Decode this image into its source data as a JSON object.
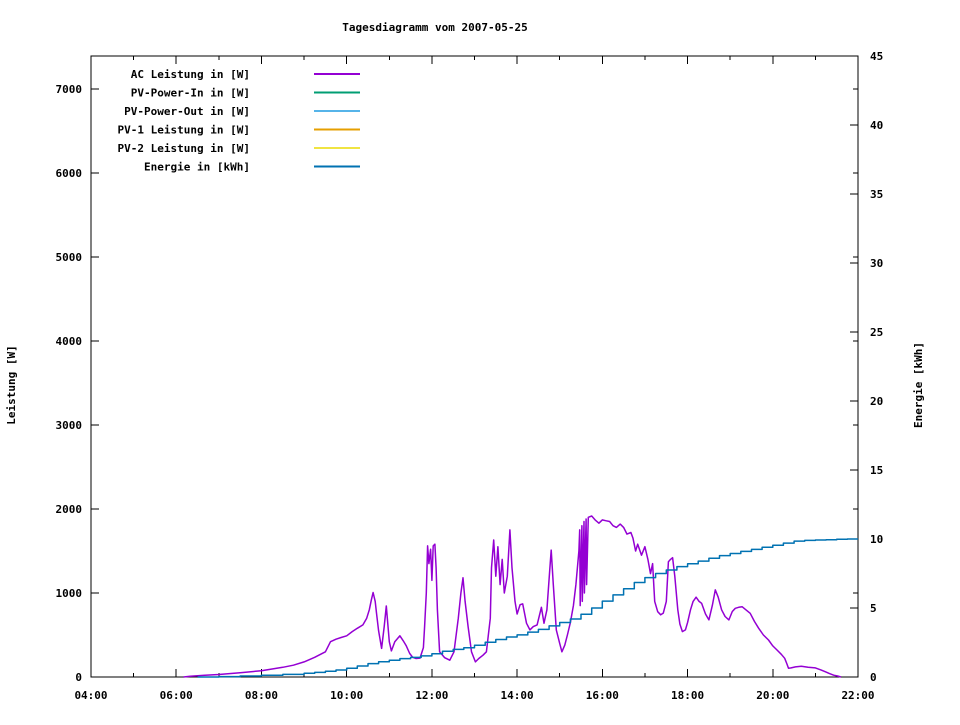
{
  "window": {
    "title": "Tagesdiagramm vom 2007-05-25"
  },
  "chart_data": {
    "type": "line",
    "title": "Tagesdiagramm vom 2007-05-25",
    "x_axis": {
      "range_hours": [
        4,
        22
      ],
      "major_tick_hours": [
        4,
        6,
        8,
        10,
        12,
        14,
        16,
        18,
        20,
        22
      ],
      "major_tick_labels": [
        "04:00",
        "06:00",
        "08:00",
        "10:00",
        "12:00",
        "14:00",
        "16:00",
        "18:00",
        "20:00",
        "22:00"
      ],
      "minor_tick_hours": [
        5,
        7,
        9,
        11,
        13,
        15,
        17,
        19,
        21
      ]
    },
    "y_left": {
      "label": "Leistung [W]",
      "max": 7390,
      "tick_values": [
        0,
        1000,
        2000,
        3000,
        4000,
        5000,
        6000,
        7000
      ]
    },
    "y_right": {
      "label": "Energie [kWh]",
      "max": 45,
      "tick_values": [
        0,
        5,
        10,
        15,
        20,
        25,
        30,
        35,
        40,
        45
      ]
    },
    "legend": [
      {
        "label": "AC Leistung in [W]",
        "color": "#9400d3"
      },
      {
        "label": "PV-Power-In in [W]",
        "color": "#009e73"
      },
      {
        "label": "PV-Power-Out in [W]",
        "color": "#56b4e9"
      },
      {
        "label": "PV-1 Leistung in [W]",
        "color": "#e69f00"
      },
      {
        "label": "PV-2 Leistung in [W]",
        "color": "#f0e442"
      },
      {
        "label": "Energie in [kWh]",
        "color": "#0072b2"
      }
    ],
    "series": [
      {
        "name": "AC Leistung in [W]",
        "color": "#9400d3",
        "axis": "left",
        "style": "line",
        "points": [
          [
            6.17,
            0
          ],
          [
            6.33,
            8
          ],
          [
            6.67,
            20
          ],
          [
            7.0,
            30
          ],
          [
            7.5,
            50
          ],
          [
            8.0,
            75
          ],
          [
            8.25,
            95
          ],
          [
            8.5,
            115
          ],
          [
            8.75,
            140
          ],
          [
            9.0,
            180
          ],
          [
            9.25,
            235
          ],
          [
            9.5,
            300
          ],
          [
            9.62,
            420
          ],
          [
            9.75,
            450
          ],
          [
            9.87,
            470
          ],
          [
            10.0,
            490
          ],
          [
            10.13,
            540
          ],
          [
            10.25,
            580
          ],
          [
            10.38,
            620
          ],
          [
            10.47,
            700
          ],
          [
            10.53,
            800
          ],
          [
            10.58,
            920
          ],
          [
            10.62,
            1005
          ],
          [
            10.67,
            900
          ],
          [
            10.7,
            760
          ],
          [
            10.75,
            550
          ],
          [
            10.82,
            340
          ],
          [
            10.88,
            600
          ],
          [
            10.93,
            845
          ],
          [
            11.0,
            420
          ],
          [
            11.05,
            310
          ],
          [
            11.13,
            420
          ],
          [
            11.25,
            490
          ],
          [
            11.33,
            430
          ],
          [
            11.4,
            370
          ],
          [
            11.48,
            280
          ],
          [
            11.55,
            235
          ],
          [
            11.63,
            220
          ],
          [
            11.72,
            225
          ],
          [
            11.8,
            350
          ],
          [
            11.83,
            600
          ],
          [
            11.87,
            1000
          ],
          [
            11.9,
            1560
          ],
          [
            11.93,
            1350
          ],
          [
            11.97,
            1520
          ],
          [
            12.0,
            1150
          ],
          [
            12.03,
            1560
          ],
          [
            12.07,
            1580
          ],
          [
            12.1,
            1300
          ],
          [
            12.13,
            800
          ],
          [
            12.18,
            300
          ],
          [
            12.3,
            230
          ],
          [
            12.42,
            200
          ],
          [
            12.52,
            300
          ],
          [
            12.62,
            700
          ],
          [
            12.68,
            1000
          ],
          [
            12.73,
            1180
          ],
          [
            12.78,
            900
          ],
          [
            12.85,
            600
          ],
          [
            12.93,
            300
          ],
          [
            13.02,
            180
          ],
          [
            13.1,
            220
          ],
          [
            13.2,
            260
          ],
          [
            13.28,
            300
          ],
          [
            13.37,
            700
          ],
          [
            13.4,
            1300
          ],
          [
            13.45,
            1630
          ],
          [
            13.5,
            1200
          ],
          [
            13.55,
            1550
          ],
          [
            13.6,
            1100
          ],
          [
            13.65,
            1400
          ],
          [
            13.7,
            1000
          ],
          [
            13.77,
            1200
          ],
          [
            13.83,
            1750
          ],
          [
            13.88,
            1300
          ],
          [
            13.95,
            900
          ],
          [
            14.0,
            750
          ],
          [
            14.07,
            860
          ],
          [
            14.13,
            870
          ],
          [
            14.22,
            640
          ],
          [
            14.3,
            560
          ],
          [
            14.38,
            600
          ],
          [
            14.47,
            620
          ],
          [
            14.57,
            830
          ],
          [
            14.63,
            640
          ],
          [
            14.7,
            800
          ],
          [
            14.77,
            1300
          ],
          [
            14.8,
            1510
          ],
          [
            14.85,
            1100
          ],
          [
            14.92,
            560
          ],
          [
            15.0,
            400
          ],
          [
            15.05,
            300
          ],
          [
            15.12,
            380
          ],
          [
            15.18,
            500
          ],
          [
            15.25,
            650
          ],
          [
            15.32,
            850
          ],
          [
            15.38,
            1100
          ],
          [
            15.45,
            1500
          ],
          [
            15.47,
            1750
          ],
          [
            15.48,
            850
          ],
          [
            15.52,
            1800
          ],
          [
            15.53,
            900
          ],
          [
            15.57,
            1850
          ],
          [
            15.58,
            1000
          ],
          [
            15.62,
            1880
          ],
          [
            15.63,
            1100
          ],
          [
            15.67,
            1900
          ],
          [
            15.75,
            1916
          ],
          [
            15.83,
            1870
          ],
          [
            15.92,
            1830
          ],
          [
            16.0,
            1870
          ],
          [
            16.08,
            1860
          ],
          [
            16.17,
            1850
          ],
          [
            16.25,
            1800
          ],
          [
            16.33,
            1780
          ],
          [
            16.42,
            1820
          ],
          [
            16.5,
            1780
          ],
          [
            16.58,
            1700
          ],
          [
            16.67,
            1720
          ],
          [
            16.72,
            1650
          ],
          [
            16.78,
            1500
          ],
          [
            16.83,
            1580
          ],
          [
            16.92,
            1450
          ],
          [
            17.0,
            1550
          ],
          [
            17.07,
            1400
          ],
          [
            17.13,
            1230
          ],
          [
            17.18,
            1350
          ],
          [
            17.23,
            900
          ],
          [
            17.3,
            777
          ],
          [
            17.37,
            740
          ],
          [
            17.43,
            760
          ],
          [
            17.5,
            900
          ],
          [
            17.55,
            1372
          ],
          [
            17.6,
            1400
          ],
          [
            17.65,
            1420
          ],
          [
            17.7,
            1200
          ],
          [
            17.77,
            800
          ],
          [
            17.82,
            630
          ],
          [
            17.88,
            540
          ],
          [
            17.95,
            560
          ],
          [
            18.0,
            650
          ],
          [
            18.07,
            800
          ],
          [
            18.13,
            900
          ],
          [
            18.2,
            950
          ],
          [
            18.27,
            900
          ],
          [
            18.33,
            877
          ],
          [
            18.42,
            750
          ],
          [
            18.5,
            680
          ],
          [
            18.58,
            850
          ],
          [
            18.65,
            1036
          ],
          [
            18.72,
            950
          ],
          [
            18.8,
            800
          ],
          [
            18.88,
            720
          ],
          [
            18.97,
            680
          ],
          [
            19.05,
            780
          ],
          [
            19.12,
            818
          ],
          [
            19.2,
            830
          ],
          [
            19.28,
            837
          ],
          [
            19.37,
            800
          ],
          [
            19.47,
            758
          ],
          [
            19.57,
            660
          ],
          [
            19.67,
            580
          ],
          [
            19.78,
            500
          ],
          [
            19.9,
            440
          ],
          [
            20.0,
            370
          ],
          [
            20.1,
            321
          ],
          [
            20.2,
            270
          ],
          [
            20.28,
            223
          ],
          [
            20.33,
            160
          ],
          [
            20.37,
            104
          ],
          [
            20.43,
            108
          ],
          [
            20.53,
            120
          ],
          [
            20.67,
            128
          ],
          [
            20.83,
            115
          ],
          [
            21.0,
            108
          ],
          [
            21.13,
            85
          ],
          [
            21.23,
            63
          ],
          [
            21.33,
            40
          ],
          [
            21.43,
            22
          ],
          [
            21.52,
            12
          ],
          [
            21.6,
            0
          ]
        ]
      },
      {
        "name": "Energie in [kWh]",
        "color": "#0072b2",
        "axis": "right",
        "style": "step",
        "points": [
          [
            6.5,
            0.0
          ],
          [
            7.0,
            0.03
          ],
          [
            7.5,
            0.07
          ],
          [
            8.0,
            0.12
          ],
          [
            8.5,
            0.19
          ],
          [
            9.0,
            0.27
          ],
          [
            9.25,
            0.33
          ],
          [
            9.5,
            0.41
          ],
          [
            9.75,
            0.51
          ],
          [
            10.0,
            0.63
          ],
          [
            10.25,
            0.8
          ],
          [
            10.5,
            0.97
          ],
          [
            10.75,
            1.1
          ],
          [
            11.0,
            1.22
          ],
          [
            11.25,
            1.33
          ],
          [
            11.5,
            1.42
          ],
          [
            11.75,
            1.53
          ],
          [
            12.0,
            1.68
          ],
          [
            12.25,
            1.86
          ],
          [
            12.5,
            2.0
          ],
          [
            12.75,
            2.12
          ],
          [
            13.0,
            2.3
          ],
          [
            13.25,
            2.52
          ],
          [
            13.5,
            2.72
          ],
          [
            13.75,
            2.9
          ],
          [
            14.0,
            3.05
          ],
          [
            14.25,
            3.25
          ],
          [
            14.5,
            3.45
          ],
          [
            14.75,
            3.7
          ],
          [
            15.0,
            3.95
          ],
          [
            15.25,
            4.2
          ],
          [
            15.5,
            4.55
          ],
          [
            15.75,
            5.0
          ],
          [
            16.0,
            5.5
          ],
          [
            16.25,
            5.95
          ],
          [
            16.5,
            6.4
          ],
          [
            16.75,
            6.85
          ],
          [
            17.0,
            7.2
          ],
          [
            17.25,
            7.5
          ],
          [
            17.5,
            7.75
          ],
          [
            17.75,
            8.0
          ],
          [
            18.0,
            8.2
          ],
          [
            18.25,
            8.4
          ],
          [
            18.5,
            8.6
          ],
          [
            18.75,
            8.8
          ],
          [
            19.0,
            8.95
          ],
          [
            19.25,
            9.1
          ],
          [
            19.5,
            9.25
          ],
          [
            19.75,
            9.4
          ],
          [
            20.0,
            9.55
          ],
          [
            20.25,
            9.7
          ],
          [
            20.5,
            9.85
          ],
          [
            20.75,
            9.9
          ],
          [
            21.0,
            9.93
          ],
          [
            21.25,
            9.95
          ],
          [
            21.5,
            9.98
          ],
          [
            21.75,
            10.0
          ],
          [
            22.0,
            10.0
          ]
        ]
      }
    ]
  }
}
